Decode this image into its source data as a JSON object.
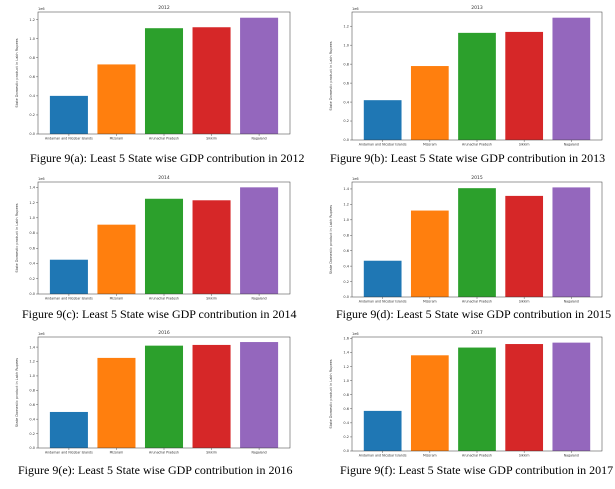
{
  "figures": [
    {
      "caption": "Figure 9(a): Least 5 State wise GDP contribution in 2012"
    },
    {
      "caption": "Figure 9(b): Least 5 State wise GDP contribution in 2013"
    },
    {
      "caption": "Figure 9(c): Least 5 State wise GDP contribution in 2014"
    },
    {
      "caption": "Figure 9(d): Least 5 State wise GDP contribution in 2015"
    },
    {
      "caption": "Figure 9(e): Least 5 State wise GDP contribution in 2016"
    },
    {
      "caption": "Figure 9(f): Least 5 State wise GDP contribution in 2017"
    }
  ],
  "chart_data": [
    {
      "type": "bar",
      "title": "2012",
      "ylabel": "State Domestic product in Lakh Rupees",
      "offset_label": "1e6",
      "categories": [
        "Andaman and Nicobar Islands",
        "Mizoram",
        "Arunachal Pradesh",
        "Sikkim",
        "Nagaland"
      ],
      "values": [
        0.4,
        0.73,
        1.11,
        1.12,
        1.22
      ],
      "ylim": [
        0,
        1.28
      ],
      "yticks": [
        0.0,
        0.2,
        0.4,
        0.6,
        0.8,
        1.0,
        1.2
      ],
      "colors": [
        "#1f77b4",
        "#ff7f0e",
        "#2ca02c",
        "#d62728",
        "#9467bd"
      ]
    },
    {
      "type": "bar",
      "title": "2013",
      "ylabel": "State Domestic product in Lakh Rupees",
      "offset_label": "1e6",
      "categories": [
        "Andaman and Nicobar Islands",
        "Mizoram",
        "Arunachal Pradesh",
        "Sikkim",
        "Nagaland"
      ],
      "values": [
        0.42,
        0.78,
        1.13,
        1.14,
        1.29
      ],
      "ylim": [
        0,
        1.35
      ],
      "yticks": [
        0.0,
        0.2,
        0.4,
        0.6,
        0.8,
        1.0,
        1.2
      ],
      "colors": [
        "#1f77b4",
        "#ff7f0e",
        "#2ca02c",
        "#d62728",
        "#9467bd"
      ]
    },
    {
      "type": "bar",
      "title": "2014",
      "ylabel": "State Domestic product in Lakh Rupees",
      "offset_label": "1e6",
      "categories": [
        "Andaman and Nicobar Islands",
        "Mizoram",
        "Arunachal Pradesh",
        "Sikkim",
        "Nagaland"
      ],
      "values": [
        0.45,
        0.91,
        1.25,
        1.23,
        1.4
      ],
      "ylim": [
        0,
        1.47
      ],
      "yticks": [
        0.0,
        0.2,
        0.4,
        0.6,
        0.8,
        1.0,
        1.2,
        1.4
      ],
      "colors": [
        "#1f77b4",
        "#ff7f0e",
        "#2ca02c",
        "#d62728",
        "#9467bd"
      ]
    },
    {
      "type": "bar",
      "title": "2015",
      "ylabel": "State Domestic product in Lakh Rupees",
      "offset_label": "1e6",
      "categories": [
        "Andaman and Nicobar Islands",
        "Mizoram",
        "Arunachal Pradesh",
        "Sikkim",
        "Nagaland"
      ],
      "values": [
        0.47,
        1.12,
        1.41,
        1.31,
        1.42
      ],
      "ylim": [
        0,
        1.49
      ],
      "yticks": [
        0.0,
        0.2,
        0.4,
        0.6,
        0.8,
        1.0,
        1.2,
        1.4
      ],
      "colors": [
        "#1f77b4",
        "#ff7f0e",
        "#2ca02c",
        "#d62728",
        "#9467bd"
      ]
    },
    {
      "type": "bar",
      "title": "2016",
      "ylabel": "State Domestic product in Lakh Rupees",
      "offset_label": "1e6",
      "categories": [
        "Andaman and Nicobar Islands",
        "Mizoram",
        "Arunachal Pradesh",
        "Sikkim",
        "Nagaland"
      ],
      "values": [
        0.5,
        1.25,
        1.42,
        1.43,
        1.47
      ],
      "ylim": [
        0,
        1.54
      ],
      "yticks": [
        0.0,
        0.2,
        0.4,
        0.6,
        0.8,
        1.0,
        1.2,
        1.4
      ],
      "colors": [
        "#1f77b4",
        "#ff7f0e",
        "#2ca02c",
        "#d62728",
        "#9467bd"
      ]
    },
    {
      "type": "bar",
      "title": "2017",
      "ylabel": "State Domestic product in Lakh Rupees",
      "offset_label": "1e6",
      "categories": [
        "Andaman and Nicobar Islands",
        "Mizoram",
        "Arunachal Pradesh",
        "Sikkim",
        "Nagaland"
      ],
      "values": [
        0.57,
        1.36,
        1.47,
        1.52,
        1.54
      ],
      "ylim": [
        0,
        1.62
      ],
      "yticks": [
        0.0,
        0.2,
        0.4,
        0.6,
        0.8,
        1.0,
        1.2,
        1.4,
        1.6
      ],
      "colors": [
        "#1f77b4",
        "#ff7f0e",
        "#2ca02c",
        "#d62728",
        "#9467bd"
      ]
    }
  ]
}
